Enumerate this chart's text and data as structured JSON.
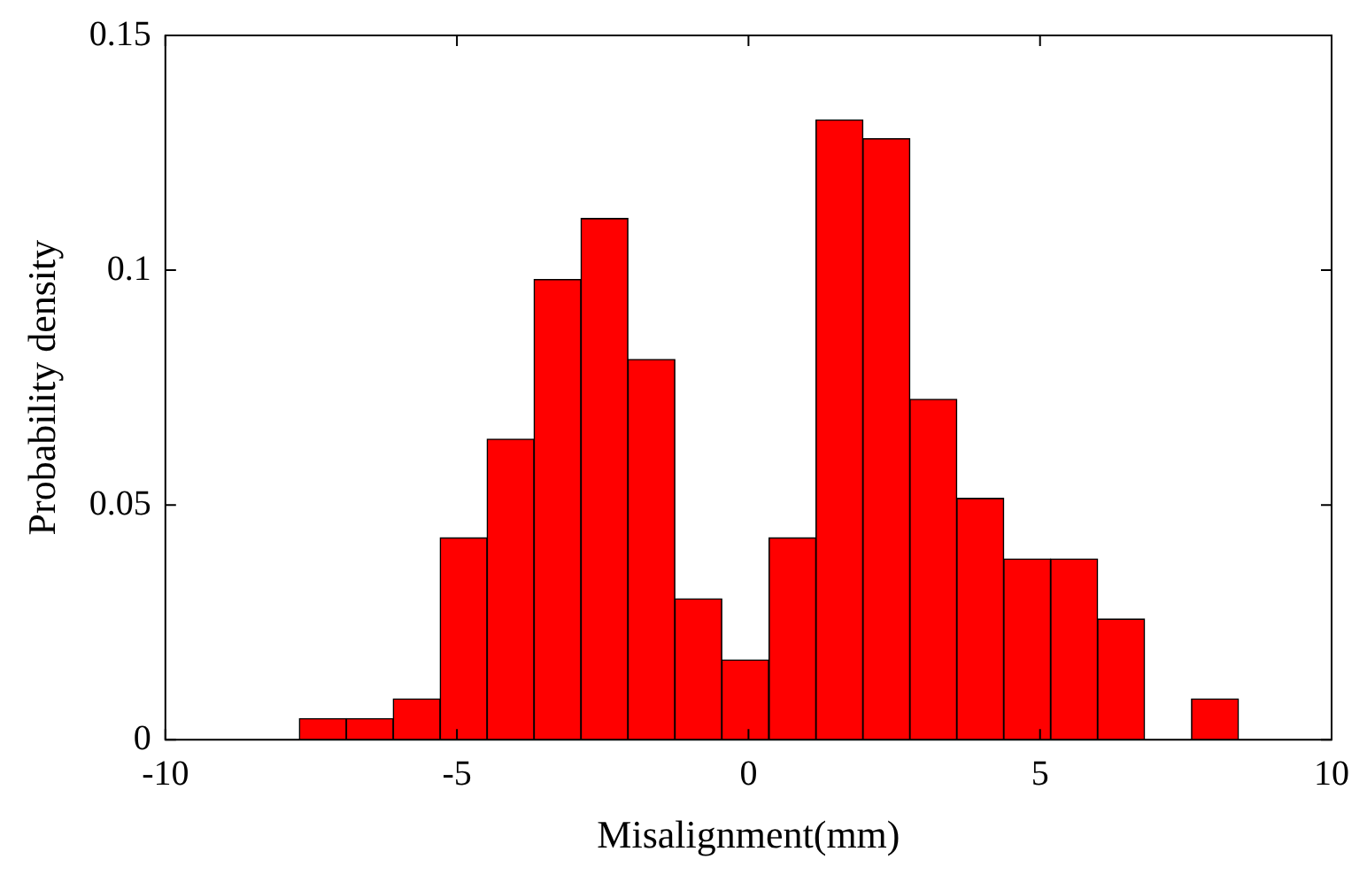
{
  "chart_data": {
    "type": "histogram",
    "xlabel": "Misalignment(mm)",
    "ylabel": "Probability density",
    "color": "#ff0000",
    "bins": [
      -7.7,
      -6.9,
      -6.09,
      -5.29,
      -4.48,
      -3.68,
      -2.87,
      -2.07,
      -1.26,
      -0.46,
      0.35,
      1.16,
      1.96,
      2.77,
      3.57,
      4.38,
      5.18,
      5.99,
      6.79,
      7.6,
      8.4
    ],
    "values": [
      0.0045,
      0.0045,
      0.0087,
      0.043,
      0.064,
      0.098,
      0.111,
      0.081,
      0.03,
      0.017,
      0.043,
      0.132,
      0.128,
      0.0725,
      0.0514,
      0.0385,
      0.0385,
      0.0257,
      0,
      0.0087
    ],
    "xlim": [
      -10,
      10
    ],
    "xticks": [
      -10,
      -5,
      0,
      5,
      10
    ],
    "ylim": [
      0,
      0.15
    ],
    "yticks": [
      0,
      0.05,
      0.1,
      0.15
    ],
    "grid": false,
    "legend": false
  }
}
